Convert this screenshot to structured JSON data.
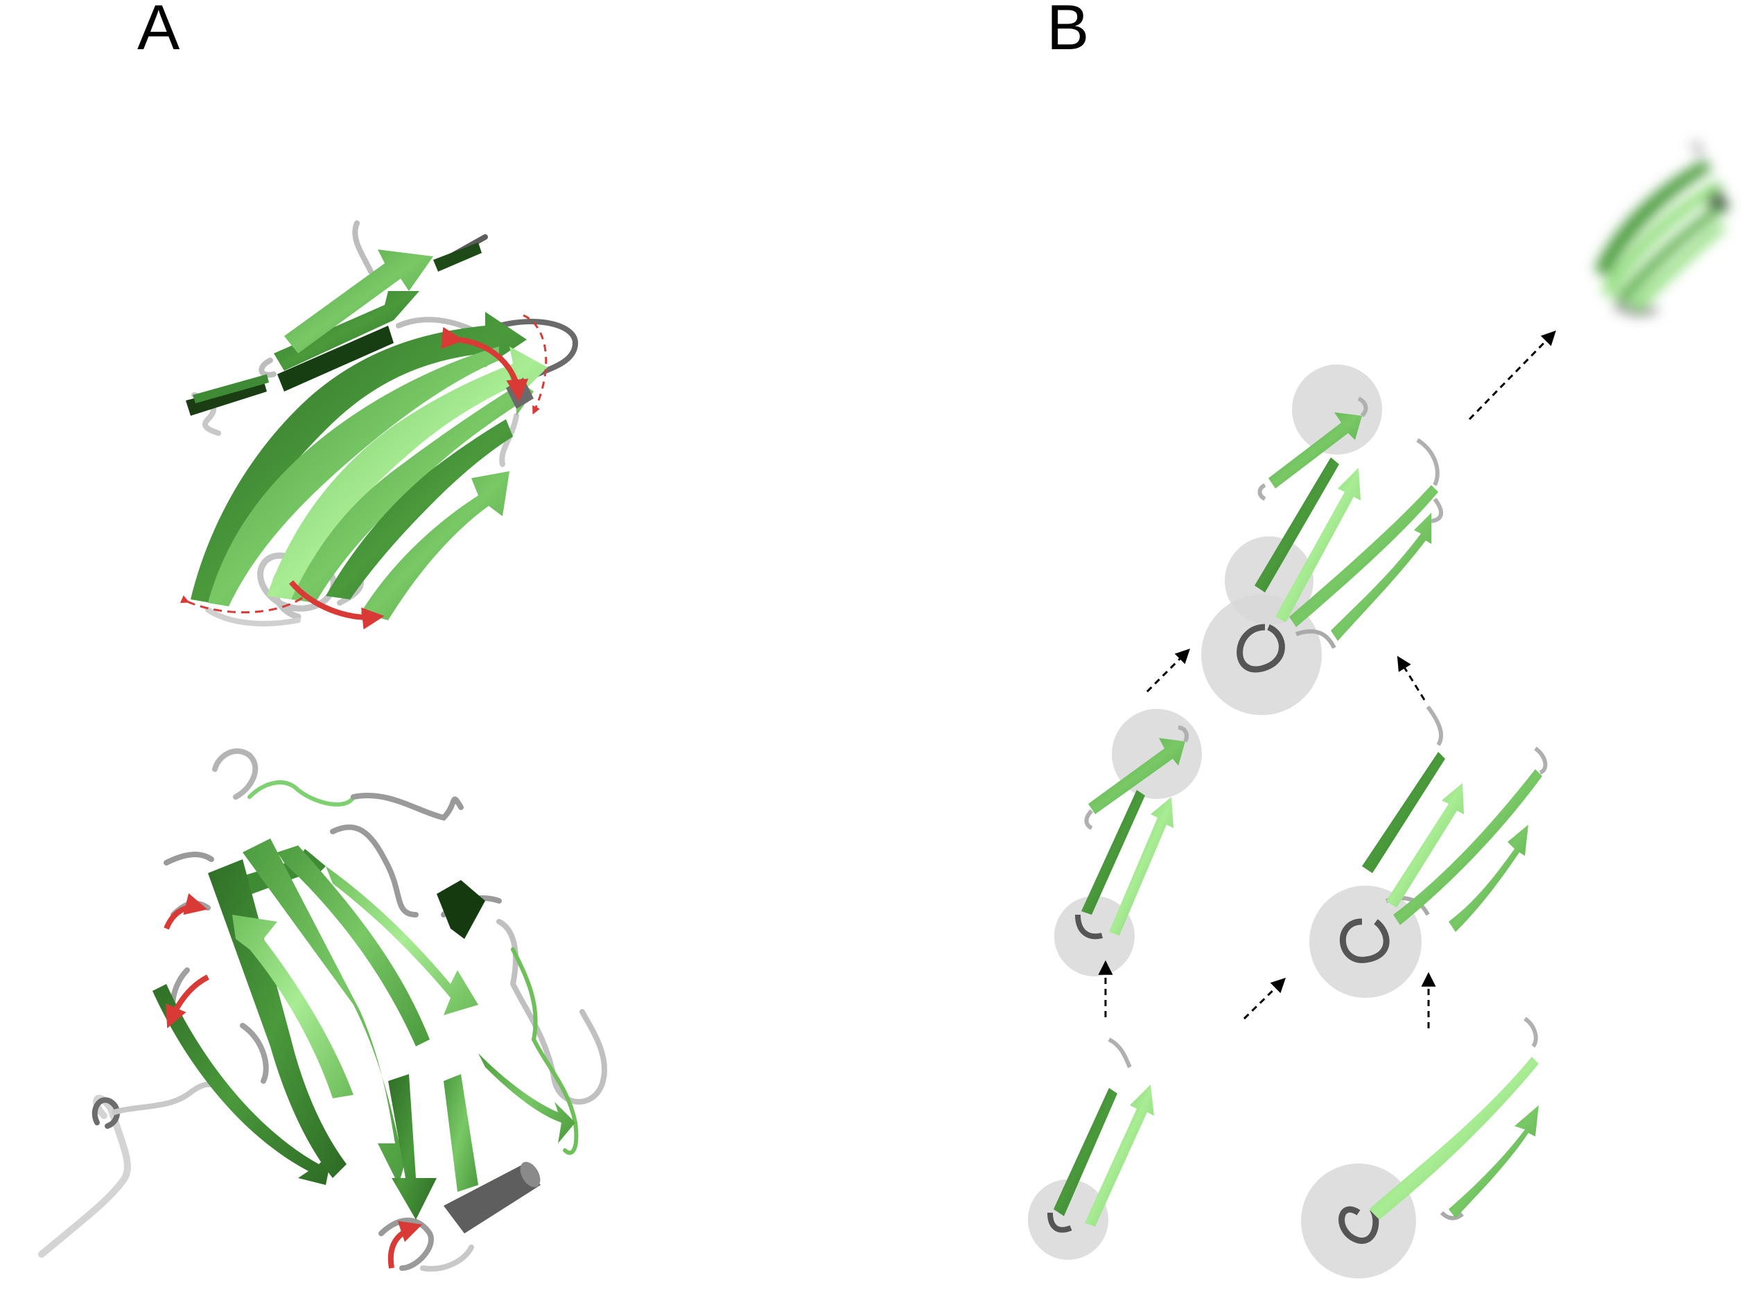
{
  "panels": {
    "a": {
      "label": "A"
    },
    "b": {
      "label": "B"
    }
  },
  "colors": {
    "strand_dark": "#3f8a34",
    "strand_mid": "#5aae4a",
    "strand_light": "#8fde7a",
    "strand_shadow": "#173d12",
    "loop_light": "#c8c8c8",
    "loop_dark": "#5c5c5c",
    "arrow_red": "#d93a35",
    "highlight_circle": "#d8d8d8",
    "flow_arrow": "#000000"
  }
}
